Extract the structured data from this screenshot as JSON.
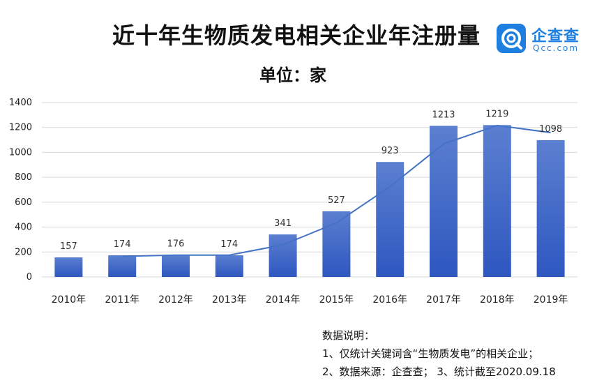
{
  "header": {
    "title": "近十年生物质发电相关企业年注册量",
    "subtitle": "单位：家"
  },
  "logo": {
    "name_cn": "企查查",
    "name_en": "Qcc.com",
    "icon": "qcc-logo-icon",
    "color": "#1f7fe0"
  },
  "chart_data": {
    "type": "bar",
    "categories": [
      "2010年",
      "2011年",
      "2012年",
      "2013年",
      "2014年",
      "2015年",
      "2016年",
      "2017年",
      "2018年",
      "2019年"
    ],
    "series": [
      {
        "values": [
          157,
          174,
          176,
          174,
          341,
          527,
          923,
          1213,
          1219,
          1098
        ]
      }
    ],
    "trendline": {
      "type": "moving-average"
    },
    "ylim": [
      0,
      1400
    ],
    "yticks": [
      0,
      200,
      400,
      600,
      800,
      1000,
      1200,
      1400
    ],
    "grid": true,
    "legend": "none",
    "bar_color_top": "#5b7fd0",
    "bar_color_bottom": "#2e57c0",
    "line_color": "#4472c4"
  },
  "notes": {
    "heading": "数据说明：",
    "line1": "1、仅统计关键词含“生物质发电”的相关企业；",
    "line2": "2、数据来源：企查查；  3、统计截至2020.09.18"
  }
}
